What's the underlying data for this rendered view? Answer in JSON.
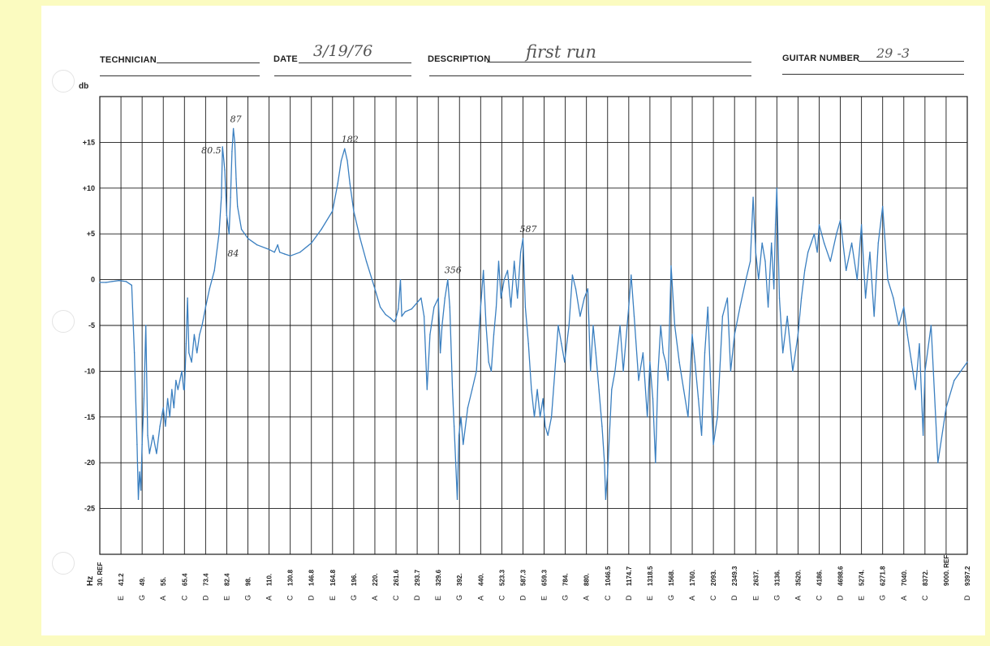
{
  "header": {
    "technician_label": "TECHNICIAN",
    "technician_value": "",
    "date_label": "DATE",
    "date_value": "3/19/76",
    "description_label": "DESCRIPTION",
    "description_value": "first run",
    "guitar_number_label": "GUITAR NUMBER",
    "guitar_number_value": "29 -3"
  },
  "colors": {
    "paper": "#ffffff",
    "background": "#fbfbc0",
    "trace": "#3a7fc0",
    "grid": "#1a1a1a"
  },
  "chart_data": {
    "type": "line",
    "ylabel": "db",
    "xlabel": "Hz",
    "ylim": [
      -30,
      20
    ],
    "y_ticks": [
      {
        "value": 15,
        "label": "+15"
      },
      {
        "value": 10,
        "label": "+10"
      },
      {
        "value": 5,
        "label": "+5"
      },
      {
        "value": 0,
        "label": "0"
      },
      {
        "value": -5,
        "label": "-5"
      },
      {
        "value": -10,
        "label": "-10"
      },
      {
        "value": -15,
        "label": "-15"
      },
      {
        "value": -20,
        "label": "-20"
      },
      {
        "value": -25,
        "label": "-25"
      }
    ],
    "x_scale": "log",
    "xlim": [
      30,
      9397.2
    ],
    "x_ticks": [
      {
        "freq": 30,
        "label": "30. REF",
        "note": ""
      },
      {
        "freq": 41.2,
        "label": "41.2",
        "note": "E"
      },
      {
        "freq": 49,
        "label": "49.",
        "note": "G"
      },
      {
        "freq": 55,
        "label": "55.",
        "note": "A"
      },
      {
        "freq": 65.4,
        "label": "65.4",
        "note": "C"
      },
      {
        "freq": 73.4,
        "label": "73.4",
        "note": "D"
      },
      {
        "freq": 82.4,
        "label": "82.4",
        "note": "E"
      },
      {
        "freq": 98,
        "label": "98.",
        "note": "G"
      },
      {
        "freq": 110,
        "label": "110.",
        "note": "A"
      },
      {
        "freq": 130.8,
        "label": "130.8",
        "note": "C"
      },
      {
        "freq": 146.8,
        "label": "146.8",
        "note": "D"
      },
      {
        "freq": 164.8,
        "label": "164.8",
        "note": "E"
      },
      {
        "freq": 196,
        "label": "196.",
        "note": "G"
      },
      {
        "freq": 220,
        "label": "220.",
        "note": "A"
      },
      {
        "freq": 261.6,
        "label": "261.6",
        "note": "C"
      },
      {
        "freq": 293.7,
        "label": "293.7",
        "note": "D"
      },
      {
        "freq": 329.6,
        "label": "329.6",
        "note": "E"
      },
      {
        "freq": 392,
        "label": "392.",
        "note": "G"
      },
      {
        "freq": 440,
        "label": "440.",
        "note": "A"
      },
      {
        "freq": 523.3,
        "label": "523.3",
        "note": "C"
      },
      {
        "freq": 587.3,
        "label": "587.3",
        "note": "D"
      },
      {
        "freq": 659.3,
        "label": "659.3",
        "note": "E"
      },
      {
        "freq": 784,
        "label": "784.",
        "note": "G"
      },
      {
        "freq": 880,
        "label": "880.",
        "note": "A"
      },
      {
        "freq": 1046.5,
        "label": "1046.5",
        "note": "C"
      },
      {
        "freq": 1174.7,
        "label": "1174.7",
        "note": "D"
      },
      {
        "freq": 1318.5,
        "label": "1318.5",
        "note": "E"
      },
      {
        "freq": 1568,
        "label": "1568.",
        "note": "G"
      },
      {
        "freq": 1760,
        "label": "1760.",
        "note": "A"
      },
      {
        "freq": 2093,
        "label": "2093.",
        "note": "C"
      },
      {
        "freq": 2349.3,
        "label": "2349.3",
        "note": "D"
      },
      {
        "freq": 2637,
        "label": "2637.",
        "note": "E"
      },
      {
        "freq": 3136,
        "label": "3136.",
        "note": "G"
      },
      {
        "freq": 3520,
        "label": "3520.",
        "note": "A"
      },
      {
        "freq": 4186,
        "label": "4186.",
        "note": "C"
      },
      {
        "freq": 4698.6,
        "label": "4698.6",
        "note": "D"
      },
      {
        "freq": 5274,
        "label": "5274.",
        "note": "E"
      },
      {
        "freq": 6271.8,
        "label": "6271.8",
        "note": "G"
      },
      {
        "freq": 7040,
        "label": "7040.",
        "note": "A"
      },
      {
        "freq": 8372,
        "label": "8372.",
        "note": "C"
      },
      {
        "freq": 9000,
        "label": "9000. REF",
        "note": ""
      },
      {
        "freq": 9397.2,
        "label": "9397.2",
        "note": "D"
      }
    ],
    "grid": true,
    "series": [
      {
        "color": "#3a7fc0",
        "points": [
          [
            30,
            -0.3
          ],
          [
            33,
            -0.3
          ],
          [
            36,
            -0.2
          ],
          [
            40,
            -0.1
          ],
          [
            43,
            -0.2
          ],
          [
            45,
            -0.6
          ],
          [
            46,
            -8
          ],
          [
            47,
            -18
          ],
          [
            47.5,
            -24
          ],
          [
            48,
            -21
          ],
          [
            48.5,
            -23
          ],
          [
            49,
            -18
          ],
          [
            49.5,
            -13
          ],
          [
            50,
            -5
          ],
          [
            50.5,
            -17
          ],
          [
            51,
            -19
          ],
          [
            52,
            -17
          ],
          [
            53,
            -19
          ],
          [
            54,
            -16
          ],
          [
            55,
            -14
          ],
          [
            56,
            -16
          ],
          [
            57,
            -13
          ],
          [
            58,
            -15
          ],
          [
            59,
            -12
          ],
          [
            60,
            -14
          ],
          [
            61,
            -11
          ],
          [
            62,
            -12
          ],
          [
            63,
            -11
          ],
          [
            64,
            -10
          ],
          [
            65,
            -12
          ],
          [
            65.4,
            -12
          ],
          [
            66,
            -7
          ],
          [
            66.5,
            -2
          ],
          [
            67,
            -8
          ],
          [
            68,
            -9
          ],
          [
            69,
            -6
          ],
          [
            70,
            -8
          ],
          [
            71,
            -6
          ],
          [
            72,
            -5
          ],
          [
            73.4,
            -3
          ],
          [
            75,
            -1
          ],
          [
            77,
            1
          ],
          [
            79,
            5
          ],
          [
            80,
            9
          ],
          [
            80.5,
            14.5
          ],
          [
            81.5,
            12
          ],
          [
            82.4,
            7
          ],
          [
            84,
            5
          ],
          [
            85,
            9
          ],
          [
            86,
            14
          ],
          [
            87,
            16.5
          ],
          [
            88,
            15
          ],
          [
            89,
            11
          ],
          [
            90,
            8
          ],
          [
            93,
            5.5
          ],
          [
            98,
            4.5
          ],
          [
            103,
            3.8
          ],
          [
            110,
            3.3
          ],
          [
            115,
            3
          ],
          [
            118,
            3.8
          ],
          [
            120,
            3.0
          ],
          [
            125,
            2.8
          ],
          [
            130.8,
            2.6
          ],
          [
            138,
            3.0
          ],
          [
            146.8,
            4.0
          ],
          [
            155,
            5.5
          ],
          [
            164.8,
            7.5
          ],
          [
            172,
            10.5
          ],
          [
            177,
            13
          ],
          [
            182,
            14.3
          ],
          [
            186,
            13
          ],
          [
            190,
            10.5
          ],
          [
            196,
            7.5
          ],
          [
            203,
            4.5
          ],
          [
            210,
            2
          ],
          [
            220,
            -1
          ],
          [
            230,
            -3
          ],
          [
            240,
            -3.8
          ],
          [
            250,
            -4.2
          ],
          [
            258,
            -4.6
          ],
          [
            261.6,
            -4.2
          ],
          [
            265,
            -3.2
          ],
          [
            268,
            0
          ],
          [
            270,
            -4
          ],
          [
            275,
            -3.5
          ],
          [
            285,
            -3.2
          ],
          [
            293.7,
            -2.5
          ],
          [
            300,
            -2.0
          ],
          [
            305,
            -4
          ],
          [
            310,
            -12
          ],
          [
            315,
            -6
          ],
          [
            322,
            -3
          ],
          [
            329.6,
            -2
          ],
          [
            335,
            -8
          ],
          [
            340,
            -5
          ],
          [
            348,
            -2
          ],
          [
            356,
            0
          ],
          [
            362,
            -3
          ],
          [
            370,
            -12
          ],
          [
            375,
            -16
          ],
          [
            380,
            -20
          ],
          [
            385,
            -24
          ],
          [
            390,
            -17
          ],
          [
            395,
            -15
          ],
          [
            400,
            -18
          ],
          [
            410,
            -14
          ],
          [
            420,
            -12
          ],
          [
            430,
            -10
          ],
          [
            440,
            -3
          ],
          [
            450,
            1
          ],
          [
            460,
            -5
          ],
          [
            470,
            -9
          ],
          [
            480,
            -10
          ],
          [
            490,
            -6
          ],
          [
            500,
            -3
          ],
          [
            510,
            2
          ],
          [
            520,
            -2
          ],
          [
            530,
            0
          ],
          [
            540,
            1
          ],
          [
            550,
            -3
          ],
          [
            560,
            2
          ],
          [
            570,
            -2
          ],
          [
            580,
            3
          ],
          [
            587.3,
            4.5
          ],
          [
            595,
            -3
          ],
          [
            605,
            -7
          ],
          [
            615,
            -12
          ],
          [
            625,
            -15
          ],
          [
            635,
            -12
          ],
          [
            645,
            -15
          ],
          [
            655,
            -13
          ],
          [
            665,
            -16
          ],
          [
            680,
            -17
          ],
          [
            700,
            -15
          ],
          [
            720,
            -10
          ],
          [
            740,
            -5
          ],
          [
            760,
            -7
          ],
          [
            780,
            -9
          ],
          [
            800,
            -5
          ],
          [
            815,
            0.5
          ],
          [
            830,
            -1
          ],
          [
            850,
            -4
          ],
          [
            870,
            -2
          ],
          [
            890,
            -1
          ],
          [
            910,
            -10
          ],
          [
            930,
            -5
          ],
          [
            950,
            -8
          ],
          [
            975,
            -12
          ],
          [
            1000,
            -16
          ],
          [
            1020,
            -20
          ],
          [
            1030,
            -24
          ],
          [
            1046.5,
            -21
          ],
          [
            1070,
            -12
          ],
          [
            1090,
            -10
          ],
          [
            1120,
            -5
          ],
          [
            1140,
            -10
          ],
          [
            1174.7,
            -3
          ],
          [
            1190,
            0.5
          ],
          [
            1210,
            -4
          ],
          [
            1240,
            -11
          ],
          [
            1270,
            -8
          ],
          [
            1300,
            -15
          ],
          [
            1318.5,
            -9
          ],
          [
            1350,
            -13
          ],
          [
            1380,
            -20
          ],
          [
            1410,
            -10
          ],
          [
            1440,
            -5
          ],
          [
            1470,
            -8
          ],
          [
            1500,
            -9
          ],
          [
            1530,
            -11
          ],
          [
            1568,
            1.5
          ],
          [
            1600,
            -5
          ],
          [
            1640,
            -9
          ],
          [
            1680,
            -12
          ],
          [
            1720,
            -15
          ],
          [
            1760,
            -6
          ],
          [
            1800,
            -9
          ],
          [
            1850,
            -13
          ],
          [
            1900,
            -17
          ],
          [
            1950,
            -8
          ],
          [
            2000,
            -3
          ],
          [
            2050,
            -12
          ],
          [
            2093,
            -18
          ],
          [
            2140,
            -15
          ],
          [
            2200,
            -4
          ],
          [
            2260,
            -2
          ],
          [
            2300,
            -10
          ],
          [
            2349.3,
            -6
          ],
          [
            2420,
            -3
          ],
          [
            2500,
            0
          ],
          [
            2560,
            2
          ],
          [
            2600,
            9
          ],
          [
            2637,
            3
          ],
          [
            2700,
            0
          ],
          [
            2780,
            4
          ],
          [
            2850,
            2
          ],
          [
            2920,
            -3
          ],
          [
            3000,
            4
          ],
          [
            3060,
            -1
          ],
          [
            3100,
            6
          ],
          [
            3136,
            10
          ],
          [
            3180,
            -2
          ],
          [
            3240,
            -8
          ],
          [
            3320,
            -4
          ],
          [
            3420,
            -10
          ],
          [
            3520,
            -6
          ],
          [
            3620,
            -2
          ],
          [
            3720,
            1
          ],
          [
            3820,
            3
          ],
          [
            3920,
            4
          ],
          [
            4020,
            5
          ],
          [
            4120,
            3
          ],
          [
            4186,
            6
          ],
          [
            4300,
            4
          ],
          [
            4450,
            2
          ],
          [
            4600,
            5
          ],
          [
            4698.6,
            6.5
          ],
          [
            4850,
            1
          ],
          [
            5000,
            4
          ],
          [
            5150,
            0
          ],
          [
            5274,
            6
          ],
          [
            5450,
            -2
          ],
          [
            5650,
            3
          ],
          [
            5850,
            -4
          ],
          [
            6050,
            4
          ],
          [
            6271.8,
            8
          ],
          [
            6450,
            0
          ],
          [
            6650,
            -2
          ],
          [
            6850,
            -5
          ],
          [
            7040,
            -3
          ],
          [
            7250,
            -6
          ],
          [
            7500,
            -9
          ],
          [
            7750,
            -12
          ],
          [
            8000,
            -7
          ],
          [
            8250,
            -17
          ],
          [
            8372,
            -10
          ],
          [
            8550,
            -5
          ],
          [
            8750,
            -20
          ],
          [
            9000,
            -14
          ],
          [
            9150,
            -11
          ],
          [
            9397.2,
            -9
          ]
        ]
      }
    ],
    "annotations": [
      {
        "text": "80.5",
        "x": 80.5,
        "y": 14.5
      },
      {
        "text": "87",
        "x": 87,
        "y": 16.5
      },
      {
        "text": "84",
        "x": 84,
        "y": 5
      },
      {
        "text": "182",
        "x": 182,
        "y": 14.3
      },
      {
        "text": "356",
        "x": 356,
        "y": 0
      },
      {
        "text": "587",
        "x": 587.3,
        "y": 4.5
      }
    ]
  }
}
